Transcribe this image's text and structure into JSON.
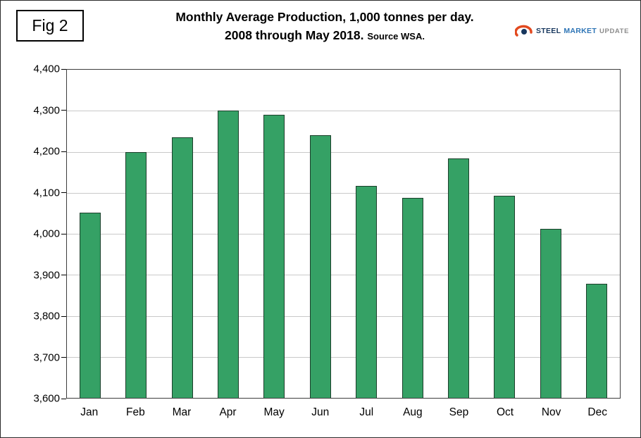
{
  "figure": {
    "label": "Fig 2"
  },
  "header": {
    "title_line1": "Monthly Average Production, 1,000 tonnes per day.",
    "title_line2": "2008 through May 2018.",
    "source": "Source WSA."
  },
  "logo": {
    "word1": "STEEL",
    "word2": "MARKET",
    "word3": "UPDATE"
  },
  "colors": {
    "bar_fill": "#35a165",
    "bar_border": "#1c3f2b",
    "gridline": "#c9c9c9",
    "axis": "#3d3d3d",
    "logo_swoosh": "#e2491f",
    "logo_navy": "#17375e"
  },
  "chart_data": {
    "type": "bar",
    "title": "Monthly Average Production, 1,000 tonnes per day.",
    "subtitle": "2008 through May 2018.",
    "source": "Source WSA.",
    "categories": [
      "Jan",
      "Feb",
      "Mar",
      "Apr",
      "May",
      "Jun",
      "Jul",
      "Aug",
      "Sep",
      "Oct",
      "Nov",
      "Dec"
    ],
    "values": [
      4052,
      4200,
      4236,
      4300,
      4291,
      4241,
      4117,
      4088,
      4184,
      4093,
      4012,
      3878
    ],
    "xlabel": "",
    "ylabel": "",
    "ylim": [
      3600,
      4400
    ],
    "yticks": [
      3600,
      3700,
      3800,
      3900,
      4000,
      4100,
      4200,
      4300,
      4400
    ],
    "ytick_labels": [
      "3,600",
      "3,700",
      "3,800",
      "3,900",
      "4,000",
      "4,100",
      "4,200",
      "4,300",
      "4,400"
    ],
    "grid": true,
    "legend": false
  }
}
